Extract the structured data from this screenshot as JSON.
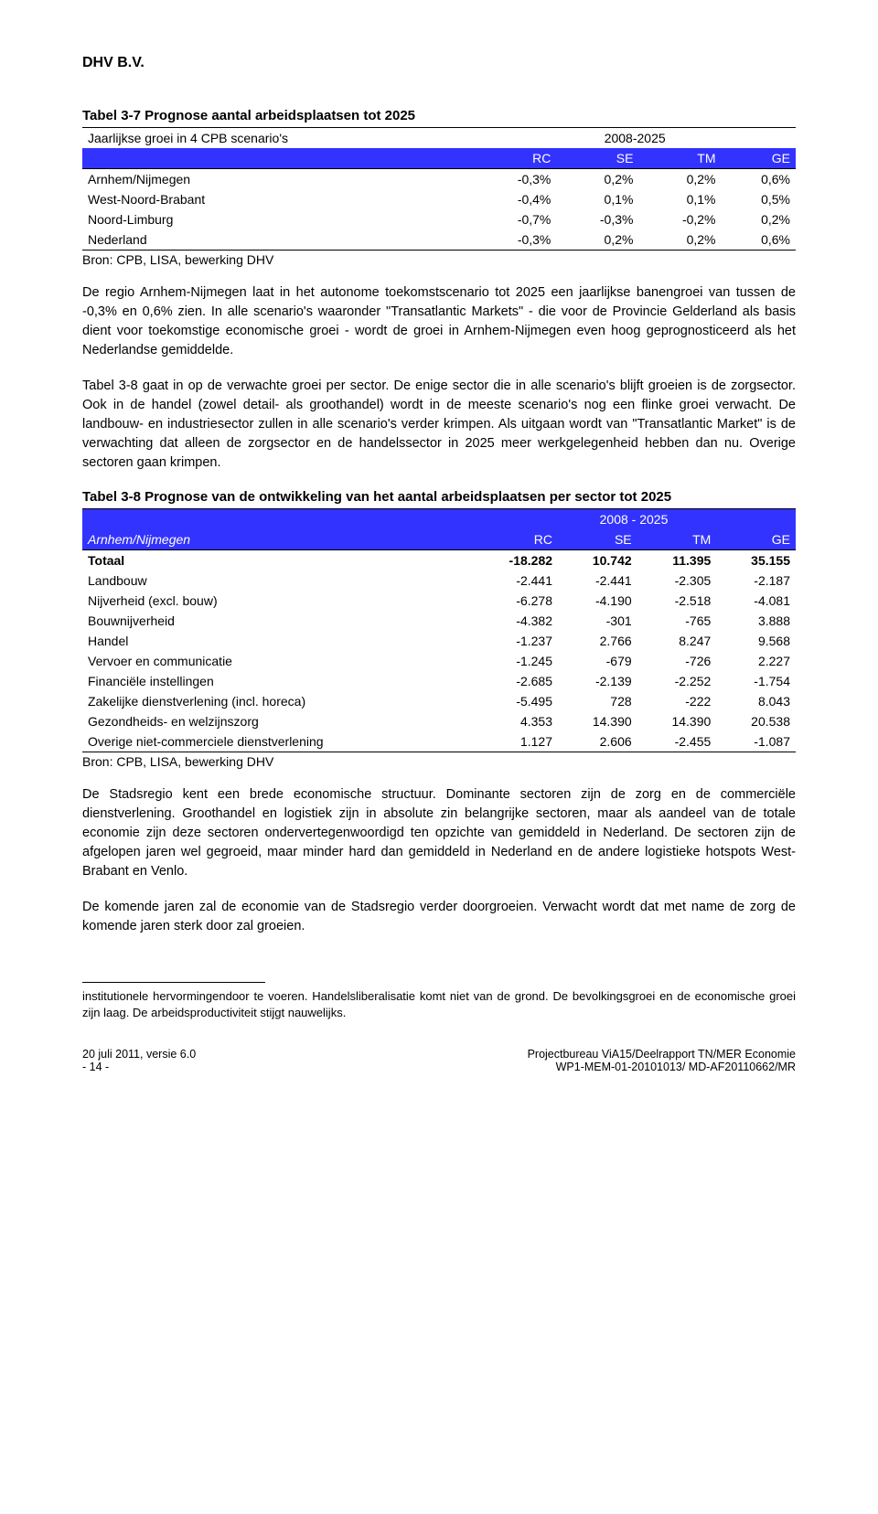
{
  "doc_header": "DHV B.V.",
  "table1": {
    "title": "Tabel 3-7 Prognose aantal arbeidsplaatsen tot 2025",
    "super_header_first": "Jaarlijkse groei in 4 CPB scenario's",
    "super_header_span": "2008-2025",
    "col_headers": [
      "",
      "RC",
      "SE",
      "TM",
      "GE"
    ],
    "rows": [
      {
        "label": "Arnhem/Nijmegen",
        "vals": [
          "-0,3%",
          "0,2%",
          "0,2%",
          "0,6%"
        ]
      },
      {
        "label": "West-Noord-Brabant",
        "vals": [
          "-0,4%",
          "0,1%",
          "0,1%",
          "0,5%"
        ]
      },
      {
        "label": "Noord-Limburg",
        "vals": [
          "-0,7%",
          "-0,3%",
          "-0,2%",
          "0,2%"
        ]
      },
      {
        "label": "Nederland",
        "vals": [
          "-0,3%",
          "0,2%",
          "0,2%",
          "0,6%"
        ]
      }
    ],
    "source": "Bron: CPB, LISA, bewerking DHV",
    "header_bg": "#3333ff",
    "header_fg": "#ffffff"
  },
  "para1": "De regio Arnhem-Nijmegen laat in het autonome toekomstscenario tot 2025 een jaarlijkse banengroei van tussen de -0,3% en 0,6% zien. In alle scenario's waaronder \"Transatlantic Markets\" - die voor de Provincie Gelderland als basis dient voor toekomstige economische groei - wordt de groei in Arnhem-Nijmegen even hoog geprognosticeerd als het Nederlandse gemiddelde.",
  "para2": "Tabel 3-8 gaat in op de verwachte groei per sector. De enige sector die in alle scenario's blijft groeien is de zorgsector. Ook in de handel (zowel detail- als groothandel) wordt in de meeste scenario's nog een flinke groei verwacht. De landbouw- en industriesector zullen in alle scenario's verder krimpen. Als uitgaan wordt van \"Transatlantic Market\" is de verwachting dat alleen de zorgsector en de handelssector in 2025 meer werkgelegenheid hebben dan nu. Overige sectoren gaan krimpen.",
  "table2": {
    "title": "Tabel 3-8 Prognose van de ontwikkeling van het aantal arbeidsplaatsen per sector tot 2025",
    "super_header_span": "2008 - 2025",
    "row_header_label": "Arnhem/Nijmegen",
    "col_headers": [
      "RC",
      "SE",
      "TM",
      "GE"
    ],
    "rows": [
      {
        "label": "Totaal",
        "vals": [
          "-18.282",
          "10.742",
          "11.395",
          "35.155"
        ],
        "bold": true
      },
      {
        "label": "Landbouw",
        "vals": [
          "-2.441",
          "-2.441",
          "-2.305",
          "-2.187"
        ]
      },
      {
        "label": "Nijverheid (excl. bouw)",
        "vals": [
          "-6.278",
          "-4.190",
          "-2.518",
          "-4.081"
        ]
      },
      {
        "label": "Bouwnijverheid",
        "vals": [
          "-4.382",
          "-301",
          "-765",
          "3.888"
        ]
      },
      {
        "label": "Handel",
        "vals": [
          "-1.237",
          "2.766",
          "8.247",
          "9.568"
        ]
      },
      {
        "label": "Vervoer en communicatie",
        "vals": [
          "-1.245",
          "-679",
          "-726",
          "2.227"
        ]
      },
      {
        "label": "Financiële instellingen",
        "vals": [
          "-2.685",
          "-2.139",
          "-2.252",
          "-1.754"
        ]
      },
      {
        "label": "Zakelijke dienstverlening (incl. horeca)",
        "vals": [
          "-5.495",
          "728",
          "-222",
          "8.043"
        ]
      },
      {
        "label": "Gezondheids- en welzijnszorg",
        "vals": [
          "4.353",
          "14.390",
          "14.390",
          "20.538"
        ]
      },
      {
        "label": "Overige niet-commerciele dienstverlening",
        "vals": [
          "1.127",
          "2.606",
          "-2.455",
          "-1.087"
        ]
      }
    ],
    "source": "Bron: CPB, LISA, bewerking DHV",
    "header_bg": "#3333ff",
    "header_fg": "#ffffff"
  },
  "para3": "De Stadsregio kent een brede economische structuur. Dominante sectoren zijn de zorg en de commerciële dienstverlening. Groothandel en logistiek zijn in absolute zin belangrijke sectoren, maar als aandeel van de totale economie zijn deze sectoren ondervertegenwoordigd ten opzichte van gemiddeld in Nederland. De sectoren zijn de afgelopen jaren wel gegroeid, maar minder hard dan gemiddeld in Nederland en de andere logistieke hotspots West-Brabant en Venlo.",
  "para4": "De komende jaren zal de economie van de Stadsregio verder doorgroeien. Verwacht wordt dat met name de zorg de komende jaren sterk door zal groeien.",
  "footnote": "institutionele hervormingendoor te voeren. Handelsliberalisatie komt niet van de grond. De bevolkingsgroei en de economische groei zijn laag. De arbeidsproductiviteit stijgt nauwelijks.",
  "footer": {
    "left_line1": "20 juli 2011, versie 6.0",
    "left_line2": "- 14 -",
    "right_line1": "Projectbureau ViA15/Deelrapport TN/MER Economie",
    "right_line2": "WP1-MEM-01-20101013/ MD-AF20110662/MR"
  }
}
